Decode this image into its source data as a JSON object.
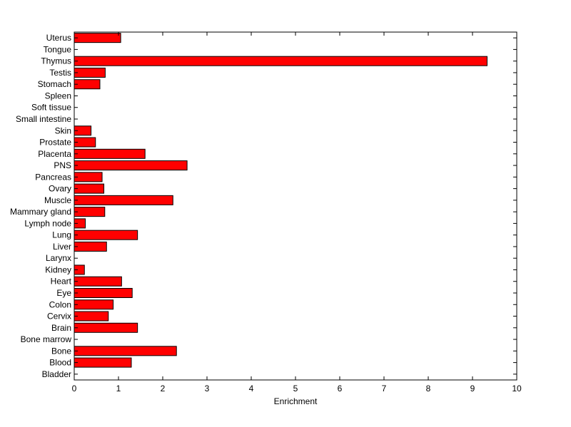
{
  "chart_data": {
    "type": "bar",
    "orientation": "horizontal",
    "title": "",
    "xlabel": "Enrichment",
    "ylabel": "",
    "xlim": [
      0,
      10
    ],
    "xticks": [
      0,
      1,
      2,
      3,
      4,
      5,
      6,
      7,
      8,
      9,
      10
    ],
    "grid": false,
    "legend": "none",
    "bar_color": "#ff0000",
    "categories": [
      "Uterus",
      "Tongue",
      "Thymus",
      "Testis",
      "Stomach",
      "Spleen",
      "Soft tissue",
      "Small intestine",
      "Skin",
      "Prostate",
      "Placenta",
      "PNS",
      "Pancreas",
      "Ovary",
      "Muscle",
      "Mammary gland",
      "Lymph node",
      "Lung",
      "Liver",
      "Larynx",
      "Kidney",
      "Heart",
      "Eye",
      "Colon",
      "Cervix",
      "Brain",
      "Bone marrow",
      "Bone",
      "Blood",
      "Bladder"
    ],
    "values": [
      1.05,
      0,
      9.33,
      0.7,
      0.58,
      0,
      0,
      0,
      0.38,
      0.48,
      1.6,
      2.55,
      0.63,
      0.67,
      2.23,
      0.69,
      0.25,
      1.43,
      0.73,
      0,
      0.23,
      1.07,
      1.31,
      0.88,
      0.77,
      1.43,
      0,
      2.31,
      1.29,
      0
    ]
  }
}
